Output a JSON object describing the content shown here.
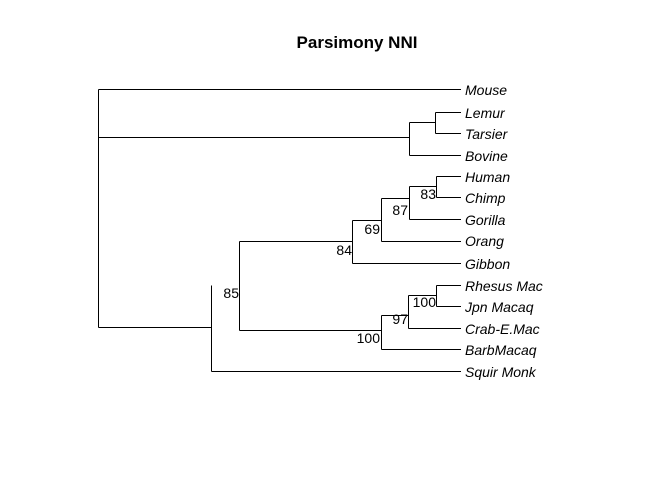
{
  "title": "Parsimony NNI",
  "tips": [
    "Mouse",
    "Lemur",
    "Tarsier",
    "Bovine",
    "Human",
    "Chimp",
    "Gorilla",
    "Orang",
    "Gibbon",
    "Rhesus Mac",
    "Jpn Macaq",
    "Crab-E.Mac",
    "BarbMacaq",
    "Squir Monk"
  ],
  "support_values": {
    "human_chimp": "83",
    "human_chimp_gorilla": "87",
    "great_apes": "69",
    "hominoids": "84",
    "rhesus_jpn": "100",
    "rhesus_jpn_crab": "97",
    "macaques": "100",
    "catarrhines": "85"
  }
}
